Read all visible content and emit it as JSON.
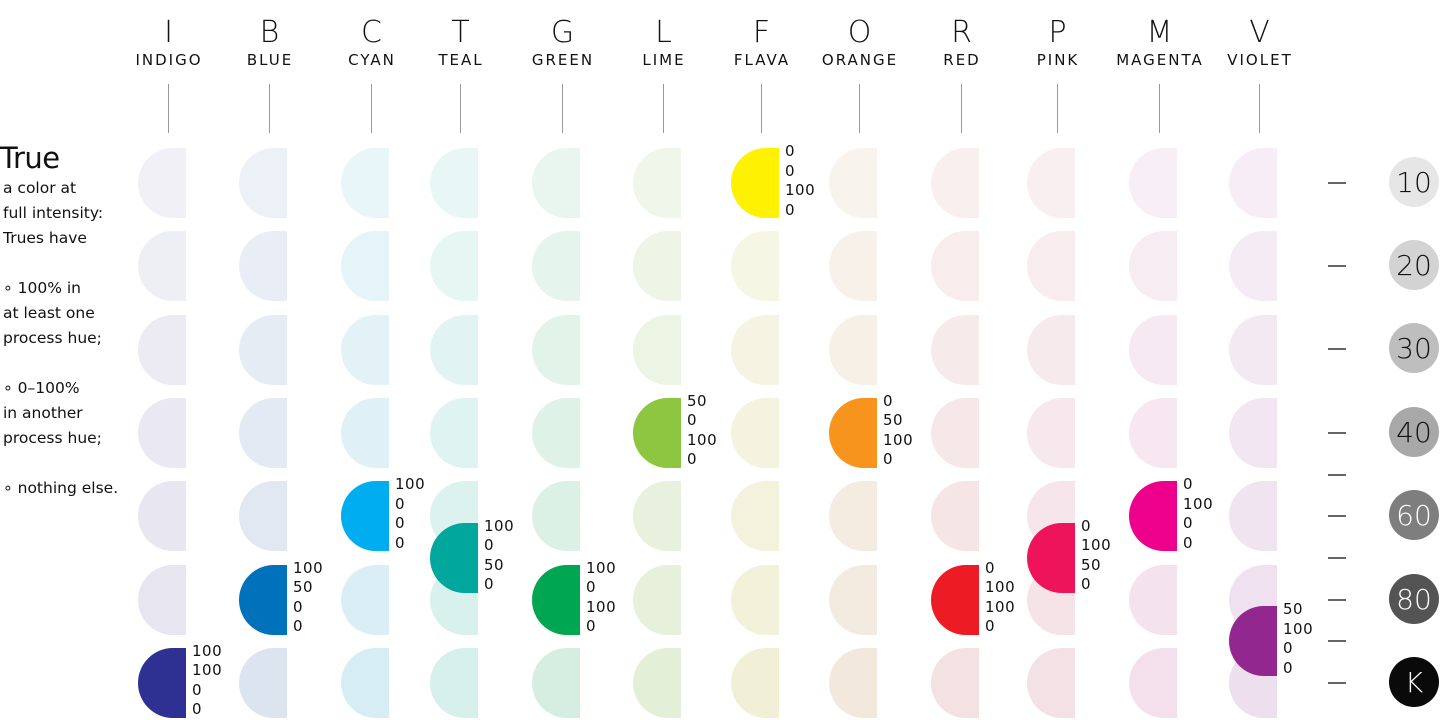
{
  "legend": {
    "title": "True",
    "paragraphs": [
      "a color at\nfull intensity:\nTrues have",
      "∘ 100% in\nat least one\nprocess hue;",
      "∘ 0–100%\nin another\nprocess hue;",
      "∘ nothing else."
    ]
  },
  "colors": {
    "tick": "#666666",
    "divider": "#9a9a9a"
  },
  "hues": [
    {
      "letter": "I",
      "name": "INDIGO",
      "tint": "#E4E3EF",
      "true_color": "#2E3192",
      "true_row": 6,
      "cmyk": [
        "100",
        "100",
        "0",
        "0"
      ]
    },
    {
      "letter": "B",
      "name": "BLUE",
      "tint": "#DCE4F0",
      "true_color": "#0072BC",
      "true_row": 5,
      "cmyk": [
        "100",
        "50",
        "0",
        "0"
      ]
    },
    {
      "letter": "C",
      "name": "CYAN",
      "tint": "#D6EDF4",
      "true_color": "#00AEEF",
      "true_row": 4,
      "cmyk": [
        "100",
        "0",
        "0",
        "0"
      ]
    },
    {
      "letter": "T",
      "name": "TEAL",
      "tint": "#D6F0EC",
      "true_color": "#00A79D",
      "true_row": 4.5,
      "cmyk": [
        "100",
        "0",
        "50",
        "0"
      ]
    },
    {
      "letter": "G",
      "name": "GREEN",
      "tint": "#D6EEE1",
      "true_color": "#00A651",
      "true_row": 5,
      "cmyk": [
        "100",
        "0",
        "100",
        "0"
      ]
    },
    {
      "letter": "L",
      "name": "LIME",
      "tint": "#E4EFD7",
      "true_color": "#8DC63F",
      "true_row": 3,
      "cmyk": [
        "50",
        "0",
        "100",
        "0"
      ]
    },
    {
      "letter": "F",
      "name": "FLAVA",
      "tint": "#F1F0D6",
      "true_color": "#FFF200",
      "true_row": 0,
      "cmyk": [
        "0",
        "0",
        "100",
        "0"
      ]
    },
    {
      "letter": "O",
      "name": "ORANGE",
      "tint": "#F2E9DC",
      "true_color": "#F7941D",
      "true_row": 3,
      "cmyk": [
        "0",
        "50",
        "100",
        "0"
      ]
    },
    {
      "letter": "R",
      "name": "RED",
      "tint": "#F4E1E1",
      "true_color": "#ED1C24",
      "true_row": 5,
      "cmyk": [
        "0",
        "100",
        "100",
        "0"
      ]
    },
    {
      "letter": "P",
      "name": "PINK",
      "tint": "#F4E1E6",
      "true_color": "#ED145B",
      "true_row": 4.5,
      "cmyk": [
        "0",
        "100",
        "50",
        "0"
      ]
    },
    {
      "letter": "M",
      "name": "MAGENTA",
      "tint": "#F3E0EC",
      "true_color": "#EC008C",
      "true_row": 4,
      "cmyk": [
        "0",
        "100",
        "0",
        "0"
      ]
    },
    {
      "letter": "V",
      "name": "VIOLET",
      "tint": "#EEDFEE",
      "true_color": "#92278F",
      "true_row": 5.5,
      "cmyk": [
        "50",
        "100",
        "0",
        "0"
      ]
    }
  ],
  "shades": [
    {
      "label": "10",
      "bg": "#E6E6E6",
      "fg": "#111111"
    },
    {
      "label": "20",
      "bg": "#D3D3D3",
      "fg": "#111111"
    },
    {
      "label": "30",
      "bg": "#BEBEBE",
      "fg": "#111111"
    },
    {
      "label": "40",
      "bg": "#A8A8A8",
      "fg": "#111111"
    },
    {
      "label": "60",
      "bg": "#7E7E7E",
      "fg": "#FFFFFF"
    },
    {
      "label": "80",
      "bg": "#545454",
      "fg": "#FFFFFF"
    },
    {
      "label": "K",
      "bg": "#0A0A0A",
      "fg": "#FFFFFF"
    }
  ]
}
